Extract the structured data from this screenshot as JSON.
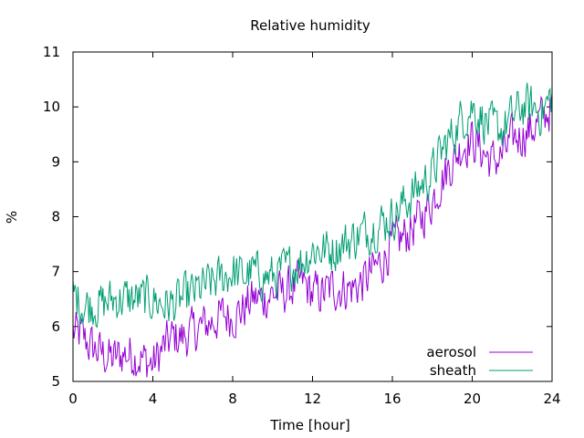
{
  "chart_data": {
    "type": "line",
    "title": "Relative humidity",
    "xlabel": "Time [hour]",
    "ylabel": "%",
    "xlim": [
      0,
      24
    ],
    "ylim": [
      5,
      11
    ],
    "xticks": [
      "0",
      "4",
      "8",
      "12",
      "16",
      "20",
      "24"
    ],
    "yticks": [
      "5",
      "6",
      "7",
      "8",
      "9",
      "10",
      "11"
    ],
    "grid": false,
    "legend_position": "bottom-right",
    "series": [
      {
        "name": "aerosol",
        "color": "#9400d3",
        "x": [
          0,
          0.5,
          1,
          1.5,
          2,
          2.5,
          3,
          3.5,
          4,
          4.5,
          5,
          5.5,
          6,
          6.5,
          7,
          7.5,
          8,
          8.5,
          9,
          9.5,
          10,
          10.5,
          11,
          11.5,
          12,
          12.5,
          13,
          13.5,
          14,
          14.5,
          15,
          15.5,
          16,
          16.5,
          17,
          17.5,
          18,
          18.5,
          19,
          19.5,
          20,
          20.5,
          21,
          21.5,
          22,
          22.5,
          23,
          23.5,
          24
        ],
        "values": [
          5.9,
          5.8,
          5.6,
          5.5,
          5.4,
          5.5,
          5.5,
          5.4,
          5.3,
          5.6,
          5.8,
          5.8,
          5.9,
          6.0,
          6.1,
          6.2,
          6.2,
          6.3,
          6.5,
          6.5,
          6.6,
          6.6,
          6.7,
          6.8,
          6.6,
          6.6,
          6.7,
          6.7,
          6.7,
          6.8,
          7.0,
          7.2,
          7.5,
          7.6,
          7.8,
          8.0,
          8.3,
          8.7,
          9.0,
          9.3,
          9.4,
          9.2,
          9.0,
          9.1,
          9.4,
          9.5,
          9.6,
          9.8,
          10.0
        ]
      },
      {
        "name": "sheath",
        "color": "#009e73",
        "x": [
          0,
          0.5,
          1,
          1.5,
          2,
          2.5,
          3,
          3.5,
          4,
          4.5,
          5,
          5.5,
          6,
          6.5,
          7,
          7.5,
          8,
          8.5,
          9,
          9.5,
          10,
          10.5,
          11,
          11.5,
          12,
          12.5,
          13,
          13.5,
          14,
          14.5,
          15,
          15.5,
          16,
          16.5,
          17,
          17.5,
          18,
          18.5,
          19,
          19.5,
          20,
          20.5,
          21,
          21.5,
          22,
          22.5,
          23,
          23.5,
          24
        ],
        "values": [
          6.6,
          6.4,
          6.4,
          6.4,
          6.5,
          6.5,
          6.5,
          6.5,
          6.5,
          6.4,
          6.4,
          6.5,
          6.6,
          6.7,
          6.8,
          6.9,
          7.0,
          6.9,
          7.0,
          6.9,
          6.9,
          7.0,
          7.1,
          7.2,
          7.4,
          7.4,
          7.4,
          7.5,
          7.6,
          7.7,
          7.8,
          7.9,
          8.0,
          8.2,
          8.4,
          8.6,
          8.8,
          9.2,
          9.5,
          9.8,
          10.0,
          9.8,
          9.6,
          9.6,
          9.8,
          10.0,
          10.0,
          9.9,
          10.2
        ]
      }
    ]
  }
}
